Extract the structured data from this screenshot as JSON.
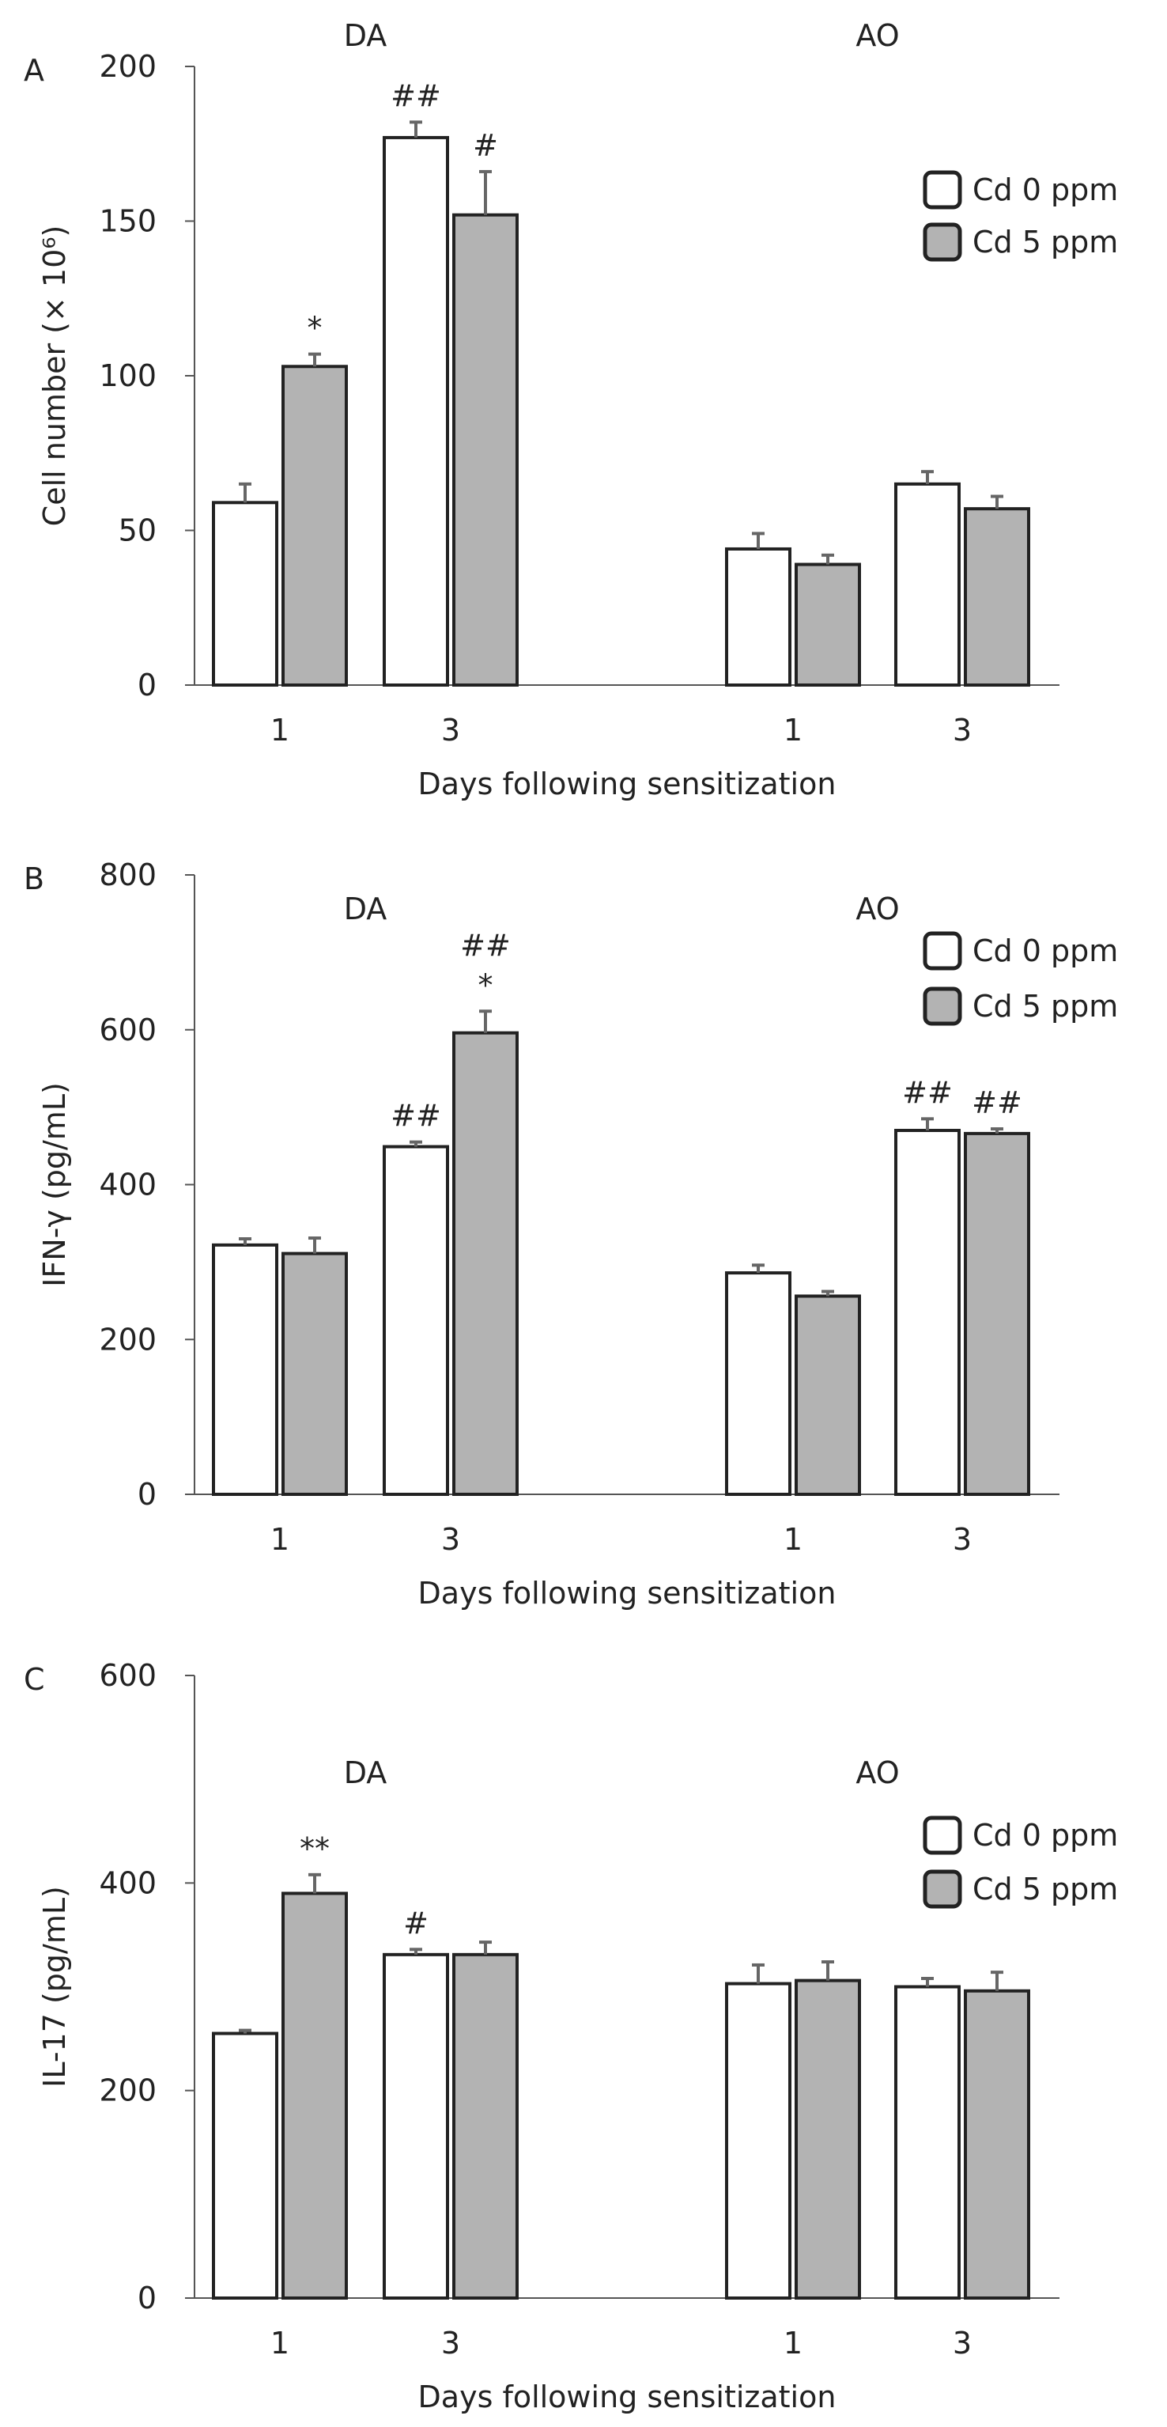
{
  "legend": {
    "items": [
      {
        "label": "Cd 0 ppm",
        "fill": "#ffffff"
      },
      {
        "label": "Cd 5 ppm",
        "fill": "#b3b3b3"
      }
    ]
  },
  "colors": {
    "cd0": "#ffffff",
    "cd5": "#b3b3b3",
    "stroke": "#222222",
    "error_bar": "#666666"
  },
  "chart_data": [
    {
      "type": "bar",
      "panel_label": "A",
      "ylabel": "Cell number (× 10⁶)",
      "xlabel": "Days following sensitization",
      "ylim": [
        0,
        200
      ],
      "yticks": [
        0,
        50,
        100,
        150,
        200
      ],
      "groups": [
        "DA",
        "AO"
      ],
      "categories": [
        "1",
        "3",
        "1",
        "3"
      ],
      "series": [
        {
          "name": "Cd 0 ppm",
          "values": [
            59,
            177,
            44,
            65
          ],
          "errors": [
            6,
            5,
            5,
            4
          ]
        },
        {
          "name": "Cd 5 ppm",
          "values": [
            103,
            152,
            39,
            57
          ],
          "errors": [
            4,
            14,
            3,
            4
          ]
        }
      ],
      "annotations": [
        {
          "group": 0,
          "series": 1,
          "text": "*"
        },
        {
          "group": 1,
          "series": 0,
          "text": "##"
        },
        {
          "group": 1,
          "series": 1,
          "text": "#"
        }
      ]
    },
    {
      "type": "bar",
      "panel_label": "B",
      "ylabel": "IFN-γ (pg/mL)",
      "xlabel": "Days following sensitization",
      "ylim": [
        0,
        800
      ],
      "yticks": [
        0,
        200,
        400,
        600,
        800
      ],
      "groups": [
        "DA",
        "AO"
      ],
      "categories": [
        "1",
        "3",
        "1",
        "3"
      ],
      "series": [
        {
          "name": "Cd 0 ppm",
          "values": [
            322,
            449,
            286,
            470
          ],
          "errors": [
            8,
            6,
            10,
            15
          ]
        },
        {
          "name": "Cd 5 ppm",
          "values": [
            311,
            596,
            256,
            466
          ],
          "errors": [
            20,
            28,
            6,
            6
          ]
        }
      ],
      "annotations": [
        {
          "group": 1,
          "series": 0,
          "text": "##"
        },
        {
          "group": 1,
          "series": 1,
          "text": "*"
        },
        {
          "group": 1,
          "series": 1,
          "text": "##"
        },
        {
          "group": 3,
          "series": 0,
          "text": "##"
        },
        {
          "group": 3,
          "series": 1,
          "text": "##"
        }
      ]
    },
    {
      "type": "bar",
      "panel_label": "C",
      "ylabel": "IL-17 (pg/mL)",
      "xlabel": "Days following sensitization",
      "ylim": [
        0,
        600
      ],
      "yticks": [
        0,
        200,
        400,
        600
      ],
      "groups": [
        "DA",
        "AO"
      ],
      "categories": [
        "1",
        "3",
        "1",
        "3"
      ],
      "series": [
        {
          "name": "Cd 0 ppm",
          "values": [
            255,
            331,
            303,
            300
          ],
          "errors": [
            3,
            5,
            18,
            8
          ]
        },
        {
          "name": "Cd 5 ppm",
          "values": [
            390,
            331,
            306,
            296
          ],
          "errors": [
            18,
            12,
            18,
            18
          ]
        }
      ],
      "annotations": [
        {
          "group": 0,
          "series": 1,
          "text": "**"
        },
        {
          "group": 1,
          "series": 0,
          "text": "#"
        }
      ]
    }
  ]
}
